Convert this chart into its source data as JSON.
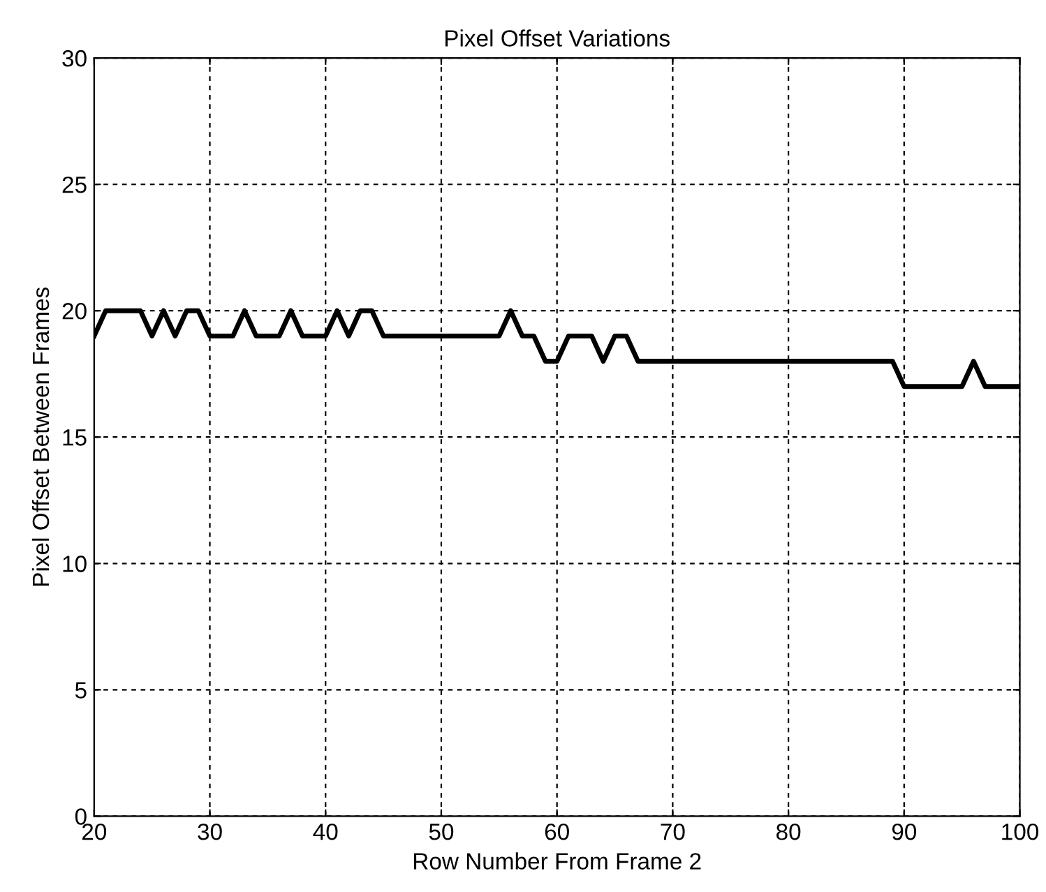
{
  "chart_data": {
    "type": "line",
    "title": "Pixel Offset Variations",
    "xlabel": "Row Number From Frame 2",
    "ylabel": "Pixel Offset Between Frames",
    "x": [
      20,
      21,
      24,
      25,
      26,
      27,
      28,
      29,
      30,
      32,
      33,
      34,
      36,
      37,
      38,
      40,
      41,
      42,
      43,
      44,
      45,
      55,
      56,
      57,
      58,
      59,
      60,
      61,
      63,
      64,
      65,
      66,
      67,
      89,
      90,
      95,
      96,
      97,
      100
    ],
    "series": [
      {
        "color": "#000000",
        "values": [
          19,
          20,
          20,
          19,
          20,
          19,
          20,
          20,
          19,
          19,
          20,
          19,
          19,
          20,
          19,
          19,
          20,
          19,
          20,
          20,
          19,
          19,
          20,
          19,
          19,
          18,
          18,
          19,
          19,
          18,
          19,
          19,
          18,
          18,
          17,
          17,
          18,
          17,
          17
        ]
      }
    ],
    "xlim": [
      20,
      100
    ],
    "xticks": [
      20,
      30,
      40,
      50,
      60,
      70,
      80,
      90,
      100
    ],
    "ylim": [
      0,
      30
    ],
    "yticks": [
      0,
      5,
      10,
      15,
      20,
      25,
      30
    ],
    "grid": true,
    "marker": "none",
    "line_style": "solid",
    "legend": false
  }
}
